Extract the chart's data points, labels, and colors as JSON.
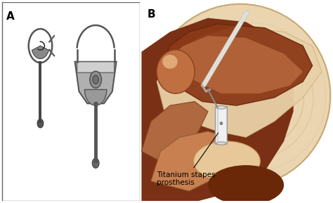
{
  "fig_width": 4.74,
  "fig_height": 2.89,
  "dpi": 100,
  "bg_color": "#ffffff",
  "label_A": "A",
  "label_B": "B",
  "label_fontsize": 11,
  "label_fontweight": "bold",
  "annotation_text": "Titanium stapes\nprosthesis",
  "annotation_fontsize": 7.5,
  "panel_A_bg": "#d4d0cb",
  "panel_B_bg": "#ffffff",
  "border_color": "#666666",
  "border_linewidth": 1.0,
  "ear_outer_color": "#e8cda8",
  "ear_inner_color": "#d4956a",
  "ear_dark_brown": "#8b3a18",
  "ear_medium_brown": "#a04828",
  "ear_light_cream": "#f0dfc0",
  "ear_cream2": "#e8c898",
  "prosthesis_color": "#e8e8e8",
  "instrument_color": "#d0d0d0"
}
